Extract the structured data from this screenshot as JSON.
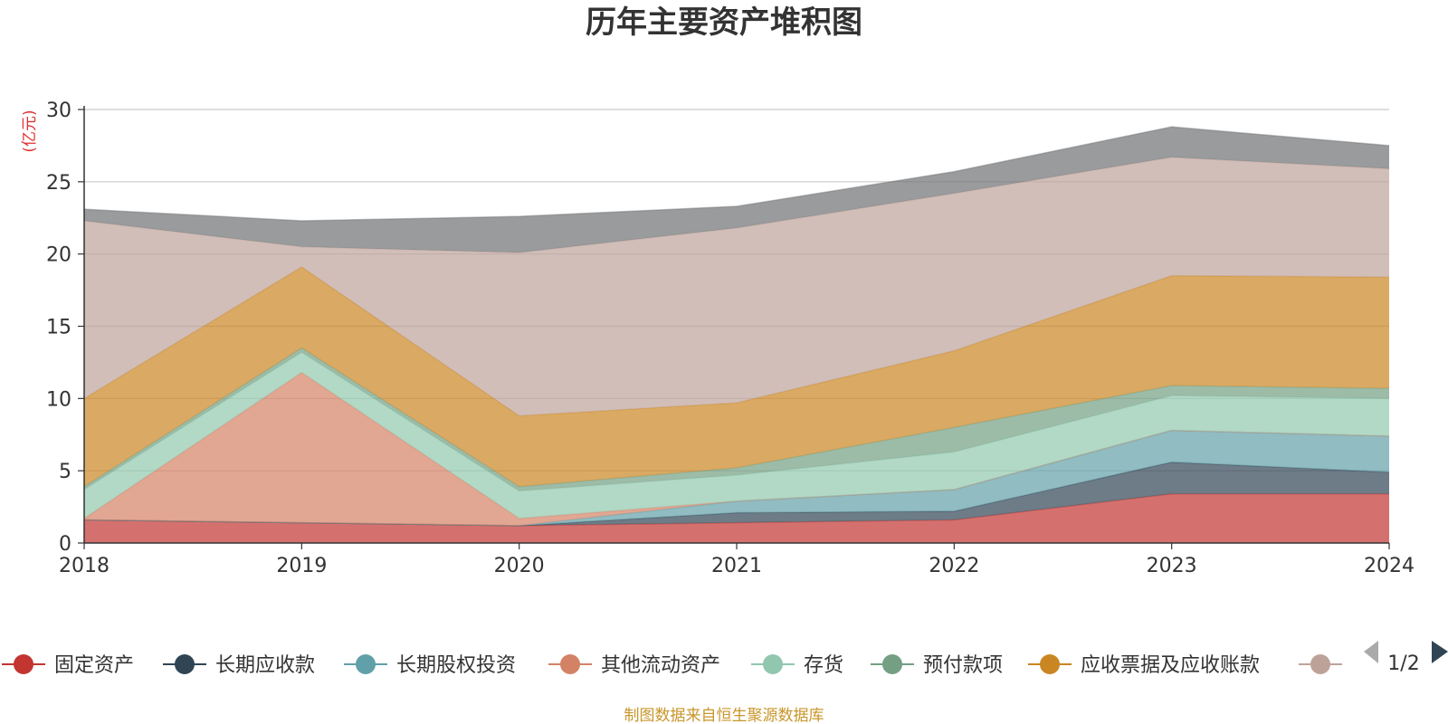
{
  "chart_data": {
    "type": "area",
    "stacked": true,
    "title": "历年主要资产堆积图",
    "ylabel": "(亿元)",
    "ylim": [
      0,
      30
    ],
    "yticks": [
      "0",
      "5",
      "10",
      "15",
      "20",
      "25",
      "30"
    ],
    "x": [
      "2018",
      "2019",
      "2020",
      "2021",
      "2022",
      "2023",
      "2024"
    ],
    "grid": true,
    "legend_position": "bottom",
    "series": [
      {
        "name": "固定资产",
        "color": "#c23531",
        "values": [
          1.6,
          1.4,
          1.2,
          1.4,
          1.6,
          3.4,
          3.4
        ]
      },
      {
        "name": "长期应收款",
        "color": "#2f4554",
        "values": [
          0,
          0,
          0,
          0.7,
          0.6,
          2.2,
          1.5
        ]
      },
      {
        "name": "长期股权投资",
        "color": "#61a0a8",
        "values": [
          0,
          0,
          0,
          0.8,
          1.5,
          2.2,
          2.5
        ]
      },
      {
        "name": "其他流动资产",
        "color": "#d48265",
        "values": [
          0.1,
          10.4,
          0.5,
          0,
          0,
          0,
          0
        ]
      },
      {
        "name": "存货",
        "color": "#91c7ae",
        "values": [
          2.0,
          1.4,
          1.9,
          1.8,
          2.6,
          2.4,
          2.6
        ]
      },
      {
        "name": "预付款项",
        "color": "#749f83",
        "values": [
          0.2,
          0.3,
          0.3,
          0.5,
          1.7,
          0.7,
          0.7
        ]
      },
      {
        "name": "应收票据及应收账款",
        "color": "#ca8622",
        "values": [
          6.1,
          5.6,
          4.9,
          4.5,
          5.3,
          7.6,
          7.7
        ]
      },
      {
        "name": "",
        "color": "#bda29a",
        "values": [
          12.3,
          1.4,
          11.3,
          12.1,
          10.9,
          8.2,
          7.5
        ]
      },
      {
        "name": "",
        "color": "#6e7074",
        "values": [
          0.8,
          1.8,
          2.5,
          1.5,
          1.5,
          2.1,
          1.6
        ]
      }
    ]
  },
  "legend": {
    "page": "1/2",
    "visible_count": 8
  },
  "footer": {
    "source": "制图数据来自恒生聚源数据库"
  }
}
